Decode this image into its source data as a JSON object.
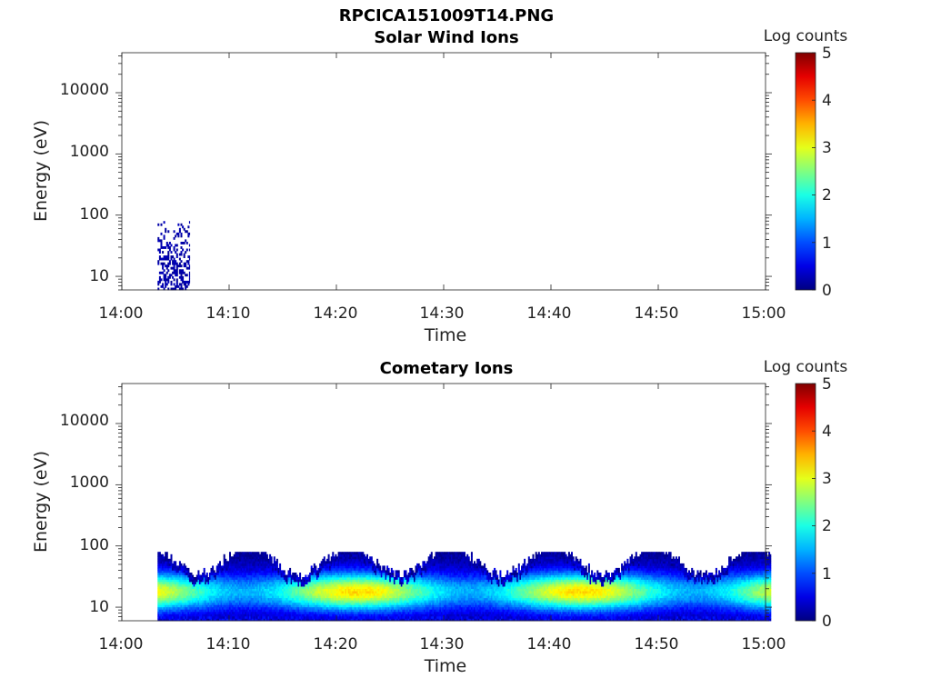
{
  "figure_title": "RPCICA151009T14.PNG",
  "chart_data": [
    {
      "type": "heatmap",
      "title": "Solar Wind Ions",
      "xlabel": "Time",
      "ylabel": "Energy (eV)",
      "x_ticks": [
        "14:00",
        "14:10",
        "14:20",
        "14:30",
        "14:40",
        "14:50",
        "15:00"
      ],
      "xlim": [
        "14:00",
        "15:00"
      ],
      "y_scale": "log",
      "y_ticks": [
        "10",
        "100",
        "1000",
        "10000"
      ],
      "ylim": [
        6,
        45000
      ],
      "colorbar": {
        "label": "Log counts",
        "ticks": [
          "0",
          "1",
          "2",
          "3",
          "4",
          "5"
        ],
        "range": [
          0,
          5
        ],
        "colormap": "jet"
      },
      "description_data": {
        "active_interval": [
          "14:03:20",
          "14:06:20"
        ],
        "energy_range_eV": [
          6,
          80
        ],
        "typical_log_counts": 0.2
      }
    },
    {
      "type": "heatmap",
      "title": "Cometary Ions",
      "xlabel": "Time",
      "ylabel": "Energy (eV)",
      "x_ticks": [
        "14:00",
        "14:10",
        "14:20",
        "14:30",
        "14:40",
        "14:50",
        "15:00"
      ],
      "xlim": [
        "14:00",
        "15:00"
      ],
      "y_scale": "log",
      "y_ticks": [
        "10",
        "100",
        "1000",
        "10000"
      ],
      "ylim": [
        6,
        45000
      ],
      "colorbar": {
        "label": "Log counts",
        "ticks": [
          "0",
          "1",
          "2",
          "3",
          "4",
          "5"
        ],
        "range": [
          0,
          5
        ],
        "colormap": "jet"
      },
      "description_data": {
        "active_interval": [
          "14:03:20",
          "15:00:30"
        ],
        "energy_range_eV": [
          6,
          80
        ],
        "peak_energy_eV": 18,
        "peak_log_counts": 3.0
      }
    }
  ]
}
